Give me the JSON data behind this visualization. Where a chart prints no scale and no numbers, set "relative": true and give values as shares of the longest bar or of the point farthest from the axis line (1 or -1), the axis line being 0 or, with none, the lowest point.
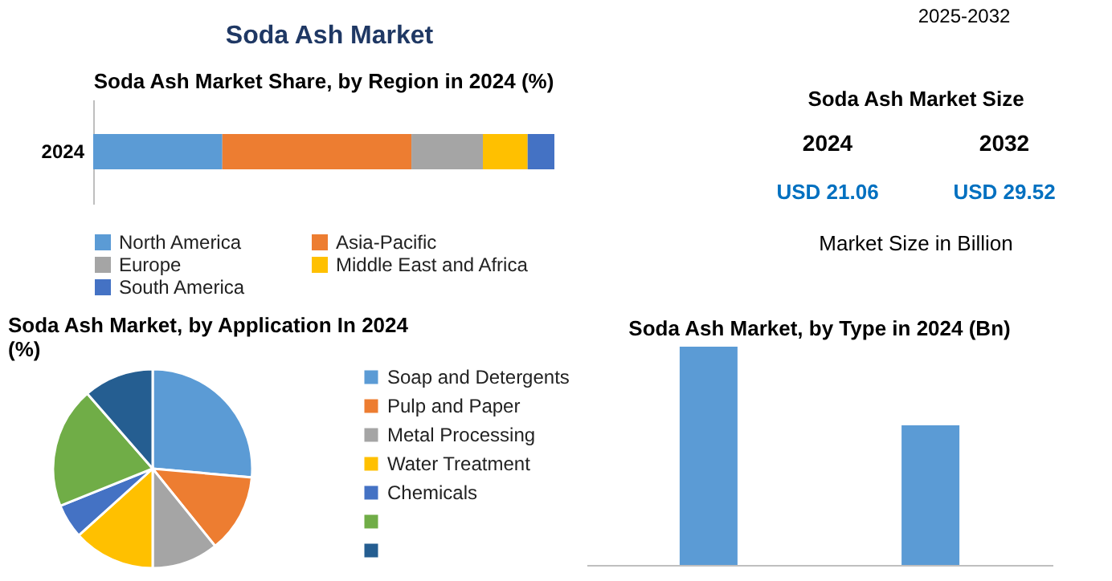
{
  "chart_data": [
    {
      "type": "other",
      "title": "Soda Ash Market",
      "annotations": [
        "2025-2032"
      ]
    },
    {
      "type": "bar",
      "title": "Soda Ash Market Share, by Region in 2024 (%)",
      "orientation": "horizontal",
      "stacked": true,
      "relative": true,
      "categories": [
        "2024"
      ],
      "legend": "bottom",
      "series": [
        {
          "name": "North America",
          "color": "#5b9bd5",
          "values": [
            0.28
          ]
        },
        {
          "name": "Asia-Pacific",
          "color": "#ed7d31",
          "values": [
            0.41
          ]
        },
        {
          "name": "Europe",
          "color": "#a5a5a5",
          "values": [
            0.155
          ]
        },
        {
          "name": "Middle East and Africa",
          "color": "#ffc000",
          "values": [
            0.097
          ]
        },
        {
          "name": "South America",
          "color": "#4472c4",
          "values": [
            0.058
          ]
        }
      ]
    },
    {
      "type": "other",
      "title": "Soda Ash Market Size",
      "annotations": [
        "2024",
        "2032",
        "USD 21.06",
        "USD 29.52",
        "Market Size in Billion"
      ]
    },
    {
      "type": "pie",
      "title": "Soda Ash Market, by Application In 2024 (%)",
      "legend": "right",
      "categories": [
        "Soap and Detergents",
        "Pulp and Paper",
        "Metal Processing",
        "Water Treatment",
        "Chemicals",
        null,
        null
      ],
      "values": [
        26.4,
        12.8,
        10.8,
        13.3,
        5.6,
        19.7,
        11.4
      ],
      "colors": [
        "#5b9bd5",
        "#ed7d31",
        "#a5a5a5",
        "#ffc000",
        "#4472c4",
        "#70ad47",
        "#255e91"
      ]
    },
    {
      "type": "bar",
      "title": "Soda Ash Market, by Type in 2024 (Bn)",
      "relative": true,
      "categories": [
        null,
        null
      ],
      "values": [
        1,
        0.64
      ],
      "color": "#5b9bd5"
    }
  ]
}
